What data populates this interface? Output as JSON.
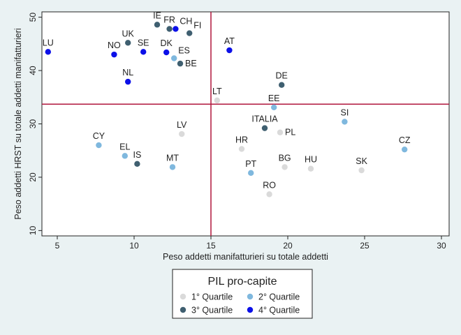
{
  "chart_data": {
    "type": "scatter",
    "xlabel": "Peso addetti manifatturieri su totale addetti",
    "ylabel": "Peso addetti HRST su totale addetti manifatturieri",
    "xlim": [
      4,
      30.5
    ],
    "ylim": [
      9,
      51
    ],
    "xticks": [
      5,
      10,
      15,
      20,
      25,
      30
    ],
    "yticks": [
      10,
      20,
      30,
      40,
      50
    ],
    "grid": false,
    "reference_lines": {
      "x": 15,
      "y": 33.7,
      "color": "#b0163c"
    },
    "legend": {
      "title": "PIL pro-capite",
      "placement": "bottom",
      "entries": [
        {
          "key": "q1",
          "label": "1° Quartile",
          "color": "#dadada"
        },
        {
          "key": "q2",
          "label": "2° Quartile",
          "color": "#7fb8de"
        },
        {
          "key": "q3",
          "label": "3° Quartile",
          "color": "#3f5f70"
        },
        {
          "key": "q4",
          "label": "4° Quartile",
          "color": "#0c10e8"
        }
      ]
    },
    "points": [
      {
        "label": "IE",
        "x": 11.5,
        "y": 48.6,
        "group": "q3",
        "label_pos": "top"
      },
      {
        "label": "FR",
        "x": 12.3,
        "y": 47.8,
        "group": "q3",
        "label_pos": "top"
      },
      {
        "label": "CH",
        "x": 12.7,
        "y": 47.8,
        "group": "q4",
        "label_pos": "top-right"
      },
      {
        "label": "FI",
        "x": 13.6,
        "y": 47.0,
        "group": "q3",
        "label_pos": "top-right"
      },
      {
        "label": "UK",
        "x": 9.6,
        "y": 45.2,
        "group": "q3",
        "label_pos": "top"
      },
      {
        "label": "LU",
        "x": 4.4,
        "y": 43.5,
        "group": "q4",
        "label_pos": "top"
      },
      {
        "label": "NO",
        "x": 8.7,
        "y": 43.0,
        "group": "q4",
        "label_pos": "top"
      },
      {
        "label": "SE",
        "x": 10.6,
        "y": 43.5,
        "group": "q4",
        "label_pos": "top"
      },
      {
        "label": "DK",
        "x": 12.1,
        "y": 43.4,
        "group": "q4",
        "label_pos": "top"
      },
      {
        "label": "ES",
        "x": 12.6,
        "y": 42.3,
        "group": "q2",
        "label_pos": "top-right"
      },
      {
        "label": "BE",
        "x": 13.0,
        "y": 41.3,
        "group": "q3",
        "label_pos": "right"
      },
      {
        "label": "AT",
        "x": 16.2,
        "y": 43.8,
        "group": "q4",
        "label_pos": "top"
      },
      {
        "label": "NL",
        "x": 9.6,
        "y": 37.9,
        "group": "q4",
        "label_pos": "top"
      },
      {
        "label": "DE",
        "x": 19.6,
        "y": 37.3,
        "group": "q3",
        "label_pos": "top"
      },
      {
        "label": "LT",
        "x": 15.4,
        "y": 34.4,
        "group": "q1",
        "label_pos": "top"
      },
      {
        "label": "EE",
        "x": 19.1,
        "y": 33.1,
        "group": "q2",
        "label_pos": "top"
      },
      {
        "label": "ITALIA",
        "x": 18.5,
        "y": 29.2,
        "group": "q3",
        "label_pos": "top"
      },
      {
        "label": "PL",
        "x": 19.5,
        "y": 28.4,
        "group": "q1",
        "label_pos": "right"
      },
      {
        "label": "SI",
        "x": 23.7,
        "y": 30.4,
        "group": "q2",
        "label_pos": "top"
      },
      {
        "label": "LV",
        "x": 13.1,
        "y": 28.1,
        "group": "q1",
        "label_pos": "top"
      },
      {
        "label": "CY",
        "x": 7.7,
        "y": 26.0,
        "group": "q2",
        "label_pos": "top"
      },
      {
        "label": "EL",
        "x": 9.4,
        "y": 24.0,
        "group": "q2",
        "label_pos": "top"
      },
      {
        "label": "IS",
        "x": 10.2,
        "y": 22.5,
        "group": "q3",
        "label_pos": "top"
      },
      {
        "label": "MT",
        "x": 12.5,
        "y": 21.9,
        "group": "q2",
        "label_pos": "top"
      },
      {
        "label": "HR",
        "x": 17.0,
        "y": 25.3,
        "group": "q1",
        "label_pos": "top"
      },
      {
        "label": "CZ",
        "x": 27.6,
        "y": 25.2,
        "group": "q2",
        "label_pos": "top"
      },
      {
        "label": "PT",
        "x": 17.6,
        "y": 20.8,
        "group": "q2",
        "label_pos": "top"
      },
      {
        "label": "BG",
        "x": 19.8,
        "y": 21.9,
        "group": "q1",
        "label_pos": "top"
      },
      {
        "label": "HU",
        "x": 21.5,
        "y": 21.6,
        "group": "q1",
        "label_pos": "top"
      },
      {
        "label": "SK",
        "x": 24.8,
        "y": 21.3,
        "group": "q1",
        "label_pos": "top"
      },
      {
        "label": "RO",
        "x": 18.8,
        "y": 16.8,
        "group": "q1",
        "label_pos": "top"
      }
    ]
  }
}
